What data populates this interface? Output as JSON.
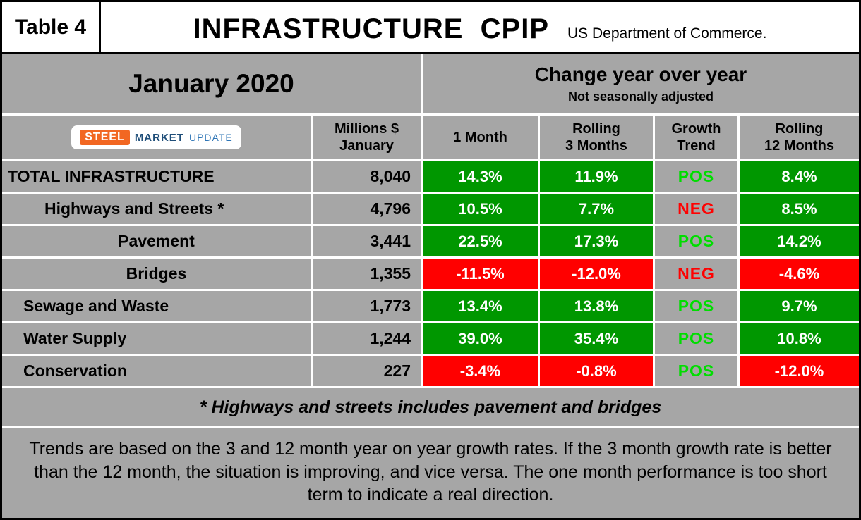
{
  "colors": {
    "background_gray": "#a6a6a6",
    "positive_cell": "#009700",
    "negative_cell": "#ff0000",
    "pos_trend_text": "#00dd00",
    "neg_trend_text": "#ff0000",
    "logo_orange": "#f26722",
    "logo_blue": "#1f4e79"
  },
  "header": {
    "table_label": "Table 4",
    "title": "INFRASTRUCTURE  CPIP",
    "subtitle": "US Department of Commerce."
  },
  "period": {
    "month": "January 2020",
    "change_title": "Change year over year",
    "change_subtitle": "Not seasonally adjusted"
  },
  "logo": {
    "steel": "STEEL",
    "market": "MARKET",
    "update": "UPDATE"
  },
  "columns": {
    "value": {
      "line1": "Millions $",
      "line2": "January"
    },
    "m1": {
      "line1": "1 Month",
      "line2": ""
    },
    "r3": {
      "line1": "Rolling",
      "line2": "3 Months"
    },
    "trend": {
      "line1": "Growth",
      "line2": "Trend"
    },
    "r12": {
      "line1": "Rolling",
      "line2": "12 Months"
    }
  },
  "rows": [
    {
      "label": "TOTAL INFRASTRUCTURE",
      "value": "8,040",
      "m1": {
        "text": "14.3%",
        "cls": "pos"
      },
      "r3": {
        "text": "11.9%",
        "cls": "pos"
      },
      "trend": {
        "text": "POS",
        "cls": "pos"
      },
      "r12": {
        "text": "8.4%",
        "cls": "pos"
      }
    },
    {
      "label": "Highways and Streets *",
      "value": "4,796",
      "m1": {
        "text": "10.5%",
        "cls": "pos"
      },
      "r3": {
        "text": "7.7%",
        "cls": "pos"
      },
      "trend": {
        "text": "NEG",
        "cls": "neg"
      },
      "r12": {
        "text": "8.5%",
        "cls": "pos"
      }
    },
    {
      "label": "Pavement",
      "value": "3,441",
      "m1": {
        "text": "22.5%",
        "cls": "pos"
      },
      "r3": {
        "text": "17.3%",
        "cls": "pos"
      },
      "trend": {
        "text": "POS",
        "cls": "pos"
      },
      "r12": {
        "text": "14.2%",
        "cls": "pos"
      }
    },
    {
      "label": "Bridges",
      "value": "1,355",
      "m1": {
        "text": "-11.5%",
        "cls": "neg"
      },
      "r3": {
        "text": "-12.0%",
        "cls": "neg"
      },
      "trend": {
        "text": "NEG",
        "cls": "neg"
      },
      "r12": {
        "text": "-4.6%",
        "cls": "neg"
      }
    },
    {
      "label": "Sewage and Waste",
      "value": "1,773",
      "m1": {
        "text": "13.4%",
        "cls": "pos"
      },
      "r3": {
        "text": "13.8%",
        "cls": "pos"
      },
      "trend": {
        "text": "POS",
        "cls": "pos"
      },
      "r12": {
        "text": "9.7%",
        "cls": "pos"
      }
    },
    {
      "label": "Water Supply",
      "value": "1,244",
      "m1": {
        "text": "39.0%",
        "cls": "pos"
      },
      "r3": {
        "text": "35.4%",
        "cls": "pos"
      },
      "trend": {
        "text": "POS",
        "cls": "pos"
      },
      "r12": {
        "text": "10.8%",
        "cls": "pos"
      }
    },
    {
      "label": "Conservation",
      "value": "227",
      "m1": {
        "text": "-3.4%",
        "cls": "neg"
      },
      "r3": {
        "text": "-0.8%",
        "cls": "neg"
      },
      "trend": {
        "text": "POS",
        "cls": "pos"
      },
      "r12": {
        "text": "-12.0%",
        "cls": "neg"
      }
    }
  ],
  "footnote": "* Highways and streets includes pavement and bridges",
  "note": "Trends are based on the 3 and 12 month year on year growth rates. If the 3 month growth rate is better than the 12 month, the situation is improving, and vice versa. The one month performance is too short term to indicate a real direction.",
  "chart_data": {
    "type": "table",
    "title": "INFRASTRUCTURE CPIP",
    "source": "US Department of Commerce.",
    "period": "January 2020",
    "note": "Not seasonally adjusted",
    "columns": [
      "Millions $ January",
      "1 Month",
      "Rolling 3 Months",
      "Growth Trend",
      "Rolling 12 Months"
    ],
    "rows": [
      {
        "category": "TOTAL INFRASTRUCTURE",
        "millions": 8040,
        "one_month_pct": 14.3,
        "rolling_3m_pct": 11.9,
        "growth_trend": "POS",
        "rolling_12m_pct": 8.4
      },
      {
        "category": "Highways and Streets *",
        "millions": 4796,
        "one_month_pct": 10.5,
        "rolling_3m_pct": 7.7,
        "growth_trend": "NEG",
        "rolling_12m_pct": 8.5
      },
      {
        "category": "Pavement",
        "millions": 3441,
        "one_month_pct": 22.5,
        "rolling_3m_pct": 17.3,
        "growth_trend": "POS",
        "rolling_12m_pct": 14.2
      },
      {
        "category": "Bridges",
        "millions": 1355,
        "one_month_pct": -11.5,
        "rolling_3m_pct": -12.0,
        "growth_trend": "NEG",
        "rolling_12m_pct": -4.6
      },
      {
        "category": "Sewage and Waste",
        "millions": 1773,
        "one_month_pct": 13.4,
        "rolling_3m_pct": 13.8,
        "growth_trend": "POS",
        "rolling_12m_pct": 9.7
      },
      {
        "category": "Water Supply",
        "millions": 1244,
        "one_month_pct": 39.0,
        "rolling_3m_pct": 35.4,
        "growth_trend": "POS",
        "rolling_12m_pct": 10.8
      },
      {
        "category": "Conservation",
        "millions": 227,
        "one_month_pct": -3.4,
        "rolling_3m_pct": -0.8,
        "growth_trend": "POS",
        "rolling_12m_pct": -12.0
      }
    ]
  }
}
